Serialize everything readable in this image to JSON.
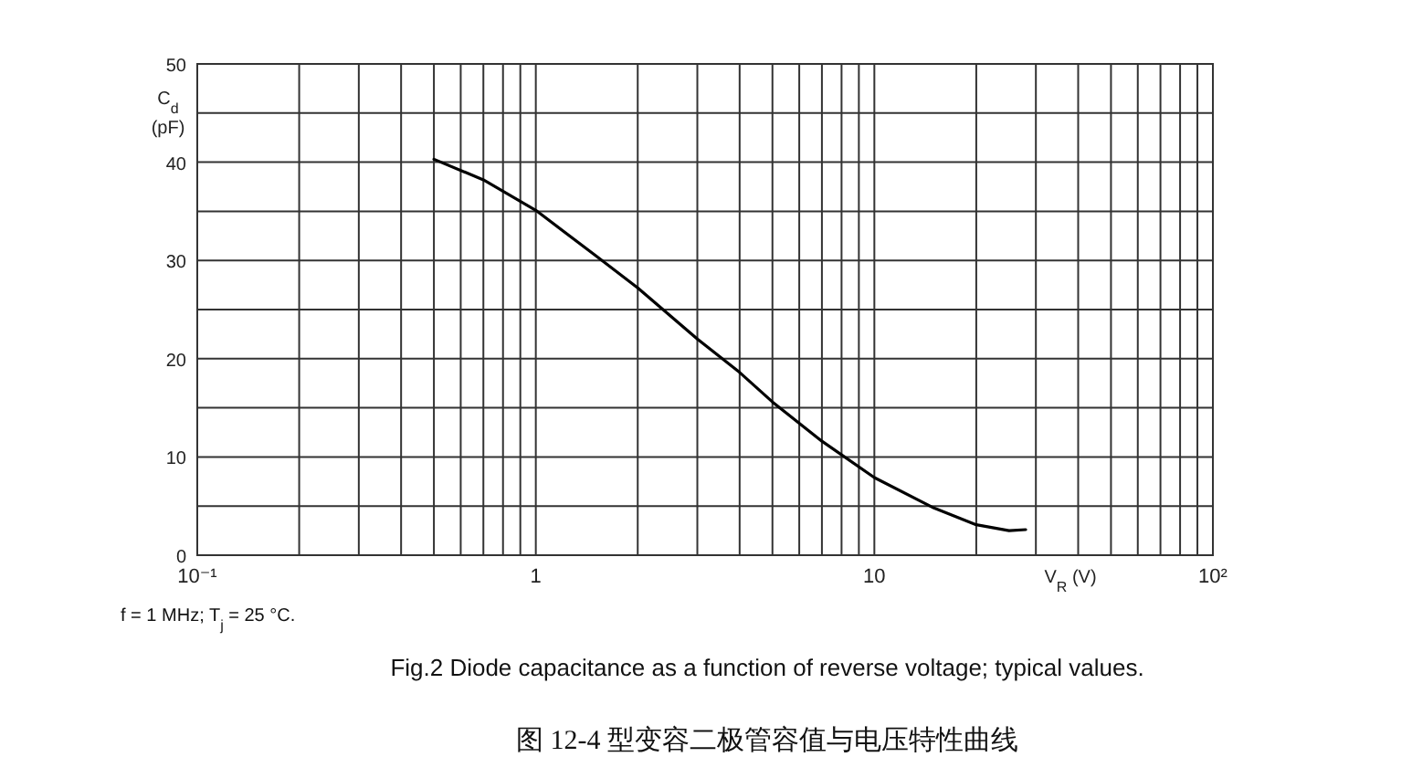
{
  "chart_data": {
    "type": "line",
    "xlabel": "V$_{R}$ (V)",
    "ylabel": "C$_{d}$ (pF)",
    "log": "x",
    "x": [
      0.5,
      0.7,
      1,
      1.5,
      2,
      3,
      4,
      5,
      7,
      10,
      15,
      20,
      25,
      28
    ],
    "series": [
      {
        "color": "#000000",
        "values": [
          40.3,
          38.2,
          35.1,
          30.5,
          27.2,
          22.0,
          18.6,
          15.6,
          11.6,
          7.9,
          4.8,
          3.1,
          2.5,
          2.6
        ]
      }
    ],
    "xlim": [
      0.1,
      100
    ],
    "xticks": [
      {
        "value": 0.1,
        "label": "10⁻¹"
      },
      {
        "value": 0.2,
        "label": null
      },
      {
        "value": 0.3,
        "label": null
      },
      {
        "value": 0.4,
        "label": null
      },
      {
        "value": 0.5,
        "label": null
      },
      {
        "value": 0.6,
        "label": null
      },
      {
        "value": 0.7,
        "label": null
      },
      {
        "value": 0.8,
        "label": null
      },
      {
        "value": 0.9,
        "label": null
      },
      {
        "value": 1,
        "label": "1"
      },
      {
        "value": 2,
        "label": null
      },
      {
        "value": 3,
        "label": null
      },
      {
        "value": 4,
        "label": null
      },
      {
        "value": 5,
        "label": null
      },
      {
        "value": 6,
        "label": null
      },
      {
        "value": 7,
        "label": null
      },
      {
        "value": 8,
        "label": null
      },
      {
        "value": 9,
        "label": null
      },
      {
        "value": 10,
        "label": "10"
      },
      {
        "value": 20,
        "label": null
      },
      {
        "value": 30,
        "label": null
      },
      {
        "value": 40,
        "label": null
      },
      {
        "value": 50,
        "label": null
      },
      {
        "value": 60,
        "label": null
      },
      {
        "value": 70,
        "label": null
      },
      {
        "value": 80,
        "label": null
      },
      {
        "value": 90,
        "label": null
      },
      {
        "value": 100,
        "label": "10²"
      }
    ],
    "ylim": [
      0,
      50
    ],
    "yticks": [
      0,
      {
        "value": 5,
        "label": null
      },
      10,
      {
        "value": 15,
        "label": null
      },
      20,
      {
        "value": 25,
        "label": null
      },
      30,
      {
        "value": 35,
        "label": null
      },
      40,
      {
        "value": 45,
        "label": null
      },
      50
    ],
    "grid": true,
    "line_style": "solid",
    "annotations": [
      "f = 1 MHz; T$_{j}$ = 25 °C.",
      "Fig.2  Diode capacitance as a function of reverse voltage; typical values.",
      "图 12-4    型变容二极管容值与电压特性曲线"
    ]
  }
}
